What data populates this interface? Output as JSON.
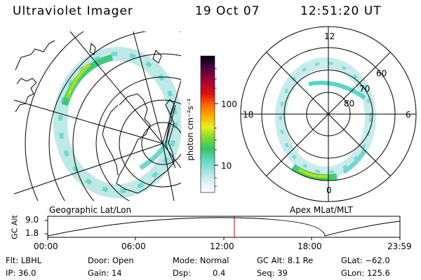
{
  "header": {
    "instrument": "Ultraviolet Imager",
    "date": "19 Oct 07",
    "time": "12:51:20 UT"
  },
  "colorbar": {
    "unit_label": "photon cm⁻²s⁻¹",
    "ticks": [
      "100",
      "10"
    ]
  },
  "left_panel": {
    "label": "Geographic Lat/Lon"
  },
  "right_panel": {
    "label": "Apex MLat/MLT",
    "mlt_labels": [
      "12",
      "18",
      "6",
      "0"
    ],
    "lat_labels": [
      "60",
      "70",
      "80"
    ]
  },
  "altitude_plot": {
    "ylabel": "GC Alt",
    "yticks": [
      "9.0",
      "1.8"
    ],
    "xticks": [
      "00:00",
      "06:00",
      "12:00",
      "18:00",
      "23:59"
    ]
  },
  "info": {
    "row1": {
      "filter": "Flt: LBHL",
      "door": "Door: Open",
      "mode": "Mode: Normal",
      "gcalt": "GC Alt: 8.1 Re",
      "glat": "GLat: −62.0"
    },
    "row2": {
      "ip": "IP: 36.0",
      "gain": "Gain: 14",
      "dsp_label": "Dsp:",
      "dsp_value": "0.4",
      "seq": "Seq: 39",
      "glon": "GLon: 125.6"
    }
  },
  "colors": {
    "aurora_low": "#bfe9e6",
    "aurora_mid": "#55d6c8",
    "aurora_high": "#33c85a",
    "aurora_peak": "#b6e000",
    "marker": "#c00000"
  }
}
